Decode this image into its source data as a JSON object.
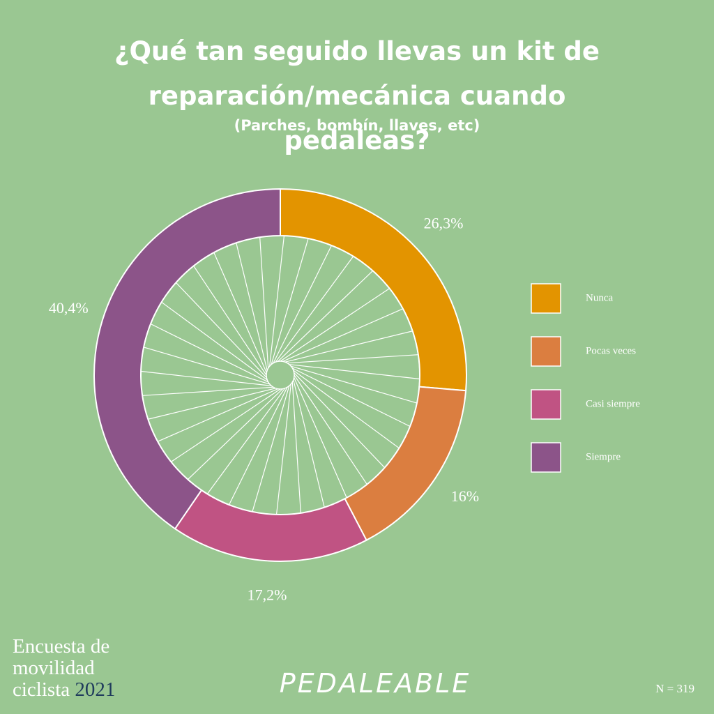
{
  "chart_data": {
    "type": "donut",
    "title": "¿Qué tan seguido llevas un kit de reparación/mecánica cuando pedaleas?",
    "subtitle": "(Parches, bombín, llaves, etc)",
    "categories": [
      "Nunca",
      "Pocas veces",
      "Casi siempre",
      "Siempre"
    ],
    "values": [
      26.3,
      16,
      17.2,
      40.4
    ],
    "value_labels": [
      "26,3%",
      "16%",
      "17,2%",
      "40,4%"
    ],
    "colors": [
      "#e39400",
      "#db7e40",
      "#c05383",
      "#8c5489"
    ],
    "legend": "right"
  },
  "footer": {
    "survey": "Encuesta de movilidad ciclista",
    "year": "2021",
    "brand": "PEDALEABLE",
    "sample": "N = 319"
  }
}
